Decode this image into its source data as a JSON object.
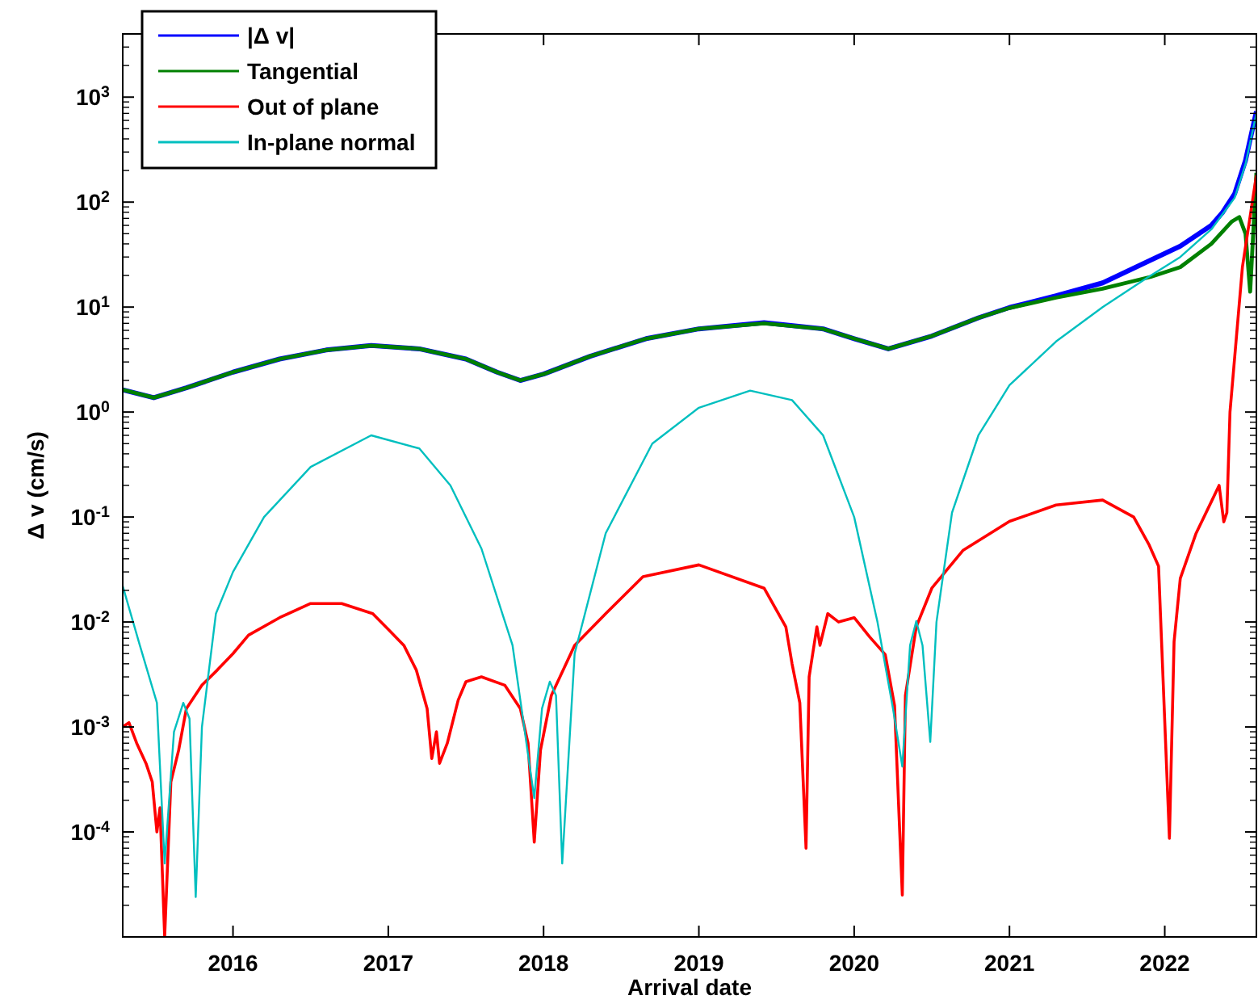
{
  "chart_data": {
    "type": "line",
    "xlabel": "Arrival date",
    "ylabel": "Δ v (cm/s)",
    "xlim": [
      2015.29,
      2022.59
    ],
    "xticks": [
      2016,
      2017,
      2018,
      2019,
      2020,
      2021,
      2022
    ],
    "ylim": [
      1e-05,
      4000
    ],
    "yticks": [
      {
        "value": 0.0001,
        "label": "10$^{-4}$"
      },
      {
        "value": 0.001,
        "label": "10$^{-3}$"
      },
      {
        "value": 0.01,
        "label": "10$^{-2}$"
      },
      {
        "value": 0.1,
        "label": "10$^{-1}$"
      },
      {
        "value": 1,
        "label": "10$^{0}$"
      },
      {
        "value": 10,
        "label": "10$^{1}$"
      },
      {
        "value": 100,
        "label": "10$^{2}$"
      },
      {
        "value": 1000,
        "label": "10$^{3}$"
      }
    ],
    "log": "y",
    "grid": false,
    "legend": "top left",
    "marker": "none",
    "line_style": "solid",
    "series": [
      {
        "name": "|Δ v|",
        "color": "#0000ff",
        "x": [
          2015.29,
          2015.49,
          2015.7,
          2016.0,
          2016.3,
          2016.6,
          2016.89,
          2017.2,
          2017.5,
          2017.7,
          2017.85,
          2018.0,
          2018.3,
          2018.66,
          2019.0,
          2019.42,
          2019.8,
          2020.0,
          2020.22,
          2020.5,
          2020.8,
          2021.0,
          2021.3,
          2021.6,
          2021.91,
          2022.1,
          2022.3,
          2022.37,
          2022.45,
          2022.52,
          2022.59
        ],
        "values": [
          1.63,
          1.37,
          1.7,
          2.4,
          3.2,
          3.9,
          4.3,
          4.0,
          3.2,
          2.4,
          2.0,
          2.3,
          3.4,
          5.0,
          6.2,
          7.1,
          6.2,
          5.0,
          4.0,
          5.3,
          7.9,
          9.9,
          12.8,
          17,
          28,
          38,
          60,
          79,
          120,
          250,
          730
        ]
      },
      {
        "name": "Tangential",
        "color": "#008000",
        "x": [
          2015.29,
          2015.49,
          2015.7,
          2016.0,
          2016.3,
          2016.6,
          2016.89,
          2017.2,
          2017.5,
          2017.7,
          2017.85,
          2018.0,
          2018.3,
          2018.66,
          2019.0,
          2019.42,
          2019.8,
          2020.0,
          2020.22,
          2020.5,
          2020.8,
          2021.0,
          2021.3,
          2021.6,
          2021.91,
          2022.1,
          2022.3,
          2022.43,
          2022.48,
          2022.52,
          2022.55,
          2022.59
        ],
        "values": [
          1.63,
          1.37,
          1.7,
          2.4,
          3.2,
          3.9,
          4.3,
          4.0,
          3.2,
          2.4,
          2.0,
          2.3,
          3.4,
          5.0,
          6.2,
          7.0,
          6.2,
          5.0,
          4.0,
          5.3,
          7.9,
          9.8,
          12.3,
          15,
          19.4,
          24,
          40,
          65,
          72,
          50,
          14,
          190
        ]
      },
      {
        "name": "Out of plane",
        "color": "#ff0000",
        "x": [
          2015.29,
          2015.33,
          2015.38,
          2015.44,
          2015.48,
          2015.51,
          2015.53,
          2015.56,
          2015.6,
          2015.65,
          2015.7,
          2015.8,
          2015.9,
          2016.0,
          2016.1,
          2016.3,
          2016.5,
          2016.7,
          2016.9,
          2017.0,
          2017.1,
          2017.18,
          2017.25,
          2017.28,
          2017.31,
          2017.33,
          2017.38,
          2017.45,
          2017.5,
          2017.6,
          2017.75,
          2017.85,
          2017.9,
          2017.94,
          2017.98,
          2018.05,
          2018.2,
          2018.4,
          2018.64,
          2019.0,
          2019.42,
          2019.56,
          2019.6,
          2019.65,
          2019.69,
          2019.71,
          2019.76,
          2019.78,
          2019.83,
          2019.9,
          2020.0,
          2020.1,
          2020.2,
          2020.26,
          2020.31,
          2020.33,
          2020.4,
          2020.5,
          2020.7,
          2021.0,
          2021.3,
          2021.6,
          2021.8,
          2021.9,
          2021.96,
          2022.03,
          2022.06,
          2022.1,
          2022.2,
          2022.3,
          2022.35,
          2022.38,
          2022.4,
          2022.42,
          2022.5,
          2022.59
        ],
        "values": [
          0.001,
          0.0011,
          0.0007,
          0.00045,
          0.0003,
          0.0001,
          0.00017,
          1e-05,
          0.0003,
          0.0006,
          0.0015,
          0.0025,
          0.0035,
          0.005,
          0.0075,
          0.011,
          0.015,
          0.015,
          0.012,
          0.0085,
          0.006,
          0.0035,
          0.0015,
          0.0005,
          0.0009,
          0.00045,
          0.0007,
          0.0018,
          0.0027,
          0.003,
          0.0025,
          0.0015,
          0.0007,
          8e-05,
          0.0006,
          0.002,
          0.006,
          0.012,
          0.027,
          0.035,
          0.021,
          0.009,
          0.004,
          0.0017,
          7e-05,
          0.003,
          0.009,
          0.006,
          0.012,
          0.01,
          0.011,
          0.0072,
          0.0049,
          0.0016,
          2.5e-05,
          0.002,
          0.009,
          0.021,
          0.048,
          0.091,
          0.13,
          0.145,
          0.1,
          0.054,
          0.034,
          8.7e-05,
          0.0065,
          0.026,
          0.069,
          0.14,
          0.2,
          0.09,
          0.11,
          1.0,
          24,
          180
        ]
      },
      {
        "name": "In-plane normal",
        "color": "#00bfbf",
        "x": [
          2015.29,
          2015.4,
          2015.51,
          2015.56,
          2015.62,
          2015.68,
          2015.72,
          2015.76,
          2015.8,
          2015.89,
          2016.0,
          2016.2,
          2016.5,
          2016.89,
          2017.2,
          2017.4,
          2017.6,
          2017.8,
          2017.94,
          2017.99,
          2018.04,
          2018.08,
          2018.12,
          2018.2,
          2018.4,
          2018.7,
          2019.0,
          2019.33,
          2019.6,
          2019.8,
          2020.0,
          2020.15,
          2020.25,
          2020.31,
          2020.36,
          2020.4,
          2020.44,
          2020.49,
          2020.53,
          2020.63,
          2020.8,
          2021.0,
          2021.3,
          2021.6,
          2021.88,
          2022.1,
          2022.3,
          2022.45,
          2022.52,
          2022.59
        ],
        "values": [
          0.022,
          0.006,
          0.0017,
          5e-05,
          0.0009,
          0.0017,
          0.0012,
          2.4e-05,
          0.001,
          0.012,
          0.03,
          0.1,
          0.3,
          0.6,
          0.45,
          0.2,
          0.05,
          0.006,
          0.00021,
          0.0015,
          0.0027,
          0.002,
          5e-05,
          0.005,
          0.07,
          0.5,
          1.1,
          1.6,
          1.3,
          0.6,
          0.1,
          0.01,
          0.0015,
          0.00042,
          0.006,
          0.0102,
          0.006,
          0.00072,
          0.01,
          0.11,
          0.6,
          1.8,
          4.7,
          10,
          18.7,
          30,
          55,
          110,
          230,
          700
        ]
      }
    ]
  }
}
